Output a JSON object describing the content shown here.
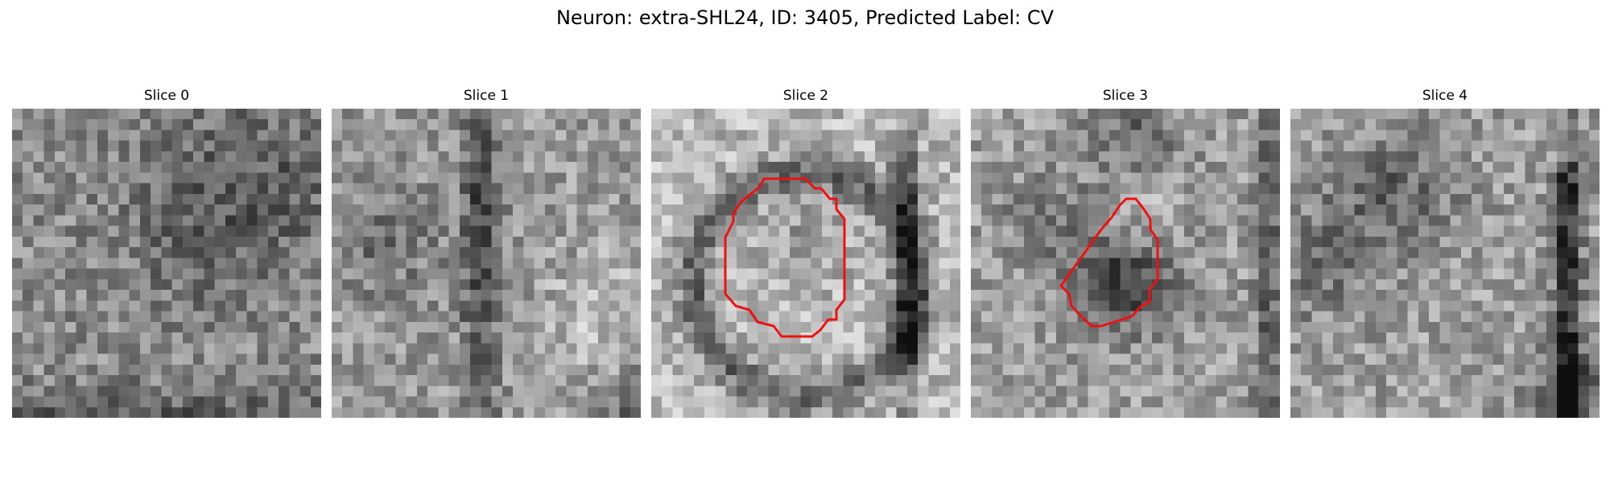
{
  "figure": {
    "title": "Neuron: extra-SHL24, ID: 3405, Predicted Label: CV"
  },
  "colors": {
    "contour": "#ee1111"
  },
  "slices": [
    {
      "title": "Slice 0"
    },
    {
      "title": "Slice 1"
    },
    {
      "title": "Slice 2"
    },
    {
      "title": "Slice 3"
    },
    {
      "title": "Slice 4"
    }
  ]
}
